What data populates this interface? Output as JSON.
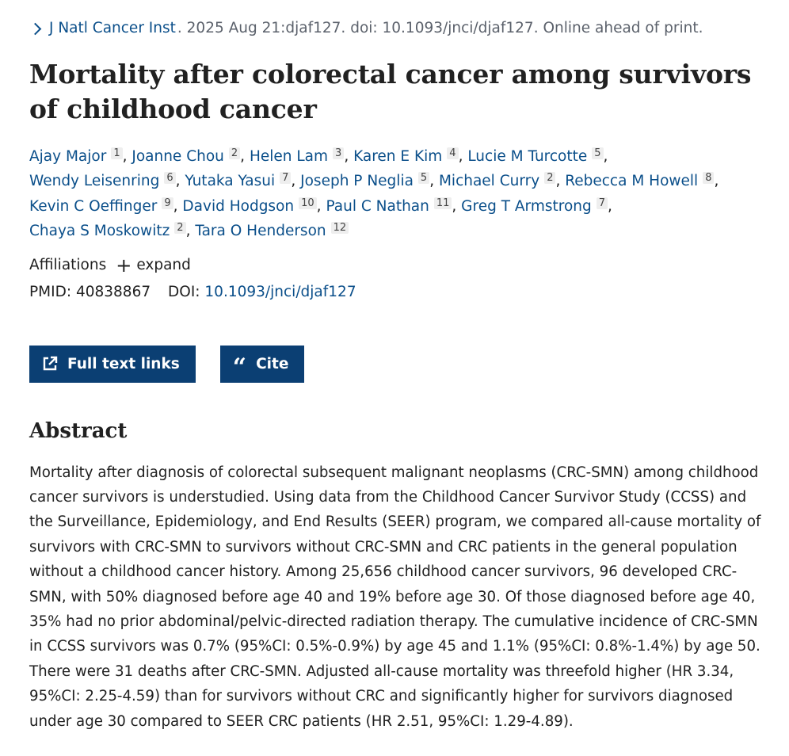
{
  "citation": {
    "journal": "J Natl Cancer Inst",
    "rest": ". 2025 Aug 21:djaf127. doi: 10.1093/jnci/djaf127. Online ahead of print."
  },
  "title": "Mortality after colorectal cancer among survivors of childhood cancer",
  "authors": [
    {
      "name": "Ajay Major",
      "aff": "1"
    },
    {
      "name": "Joanne Chou",
      "aff": "2"
    },
    {
      "name": "Helen Lam",
      "aff": "3"
    },
    {
      "name": "Karen E Kim",
      "aff": "4"
    },
    {
      "name": "Lucie M Turcotte",
      "aff": "5"
    },
    {
      "name": "Wendy Leisenring",
      "aff": "6"
    },
    {
      "name": "Yutaka Yasui",
      "aff": "7"
    },
    {
      "name": "Joseph P Neglia",
      "aff": "5"
    },
    {
      "name": "Michael Curry",
      "aff": "2"
    },
    {
      "name": "Rebecca M Howell",
      "aff": "8"
    },
    {
      "name": "Kevin C Oeffinger",
      "aff": "9"
    },
    {
      "name": "David Hodgson",
      "aff": "10"
    },
    {
      "name": "Paul C Nathan",
      "aff": "11"
    },
    {
      "name": "Greg T Armstrong",
      "aff": "7"
    },
    {
      "name": "Chaya S Moskowitz",
      "aff": "2"
    },
    {
      "name": "Tara O Henderson",
      "aff": "12"
    }
  ],
  "affiliations": {
    "label": "Affiliations",
    "expand_label": "expand"
  },
  "ids": {
    "pmid_label": "PMID:",
    "pmid": "40838867",
    "doi_label": "DOI:",
    "doi": "10.1093/jnci/djaf127"
  },
  "buttons": {
    "full_text": "Full text links",
    "cite": "Cite"
  },
  "abstract": {
    "heading": "Abstract",
    "text": "Mortality after diagnosis of colorectal subsequent malignant neoplasms (CRC-SMN) among childhood cancer survivors is understudied. Using data from the Childhood Cancer Survivor Study (CCSS) and the Surveillance, Epidemiology, and End Results (SEER) program, we compared all-cause mortality of survivors with CRC-SMN to survivors without CRC-SMN and CRC patients in the general population without a childhood cancer history. Among 25,656 childhood cancer survivors, 96 developed CRC-SMN, with 50% diagnosed before age 40 and 19% before age 30. Of those diagnosed before age 40, 35% had no prior abdominal/pelvic-directed radiation therapy. The cumulative incidence of CRC-SMN in CCSS survivors was 0.7% (95%CI: 0.5%-0.9%) by age 45 and 1.1% (95%CI: 0.8%-1.4%) by age 50. There were 31 deaths after CRC-SMN. Adjusted all-cause mortality was threefold higher (HR 3.34, 95%CI: 2.25-4.59) than for survivors without CRC and significantly higher for survivors diagnosed under age 30 compared to SEER CRC patients (HR 2.51, 95%CI: 1.29-4.89)."
  },
  "colors": {
    "link": "#0b4f8a",
    "button": "#0b3f73"
  }
}
